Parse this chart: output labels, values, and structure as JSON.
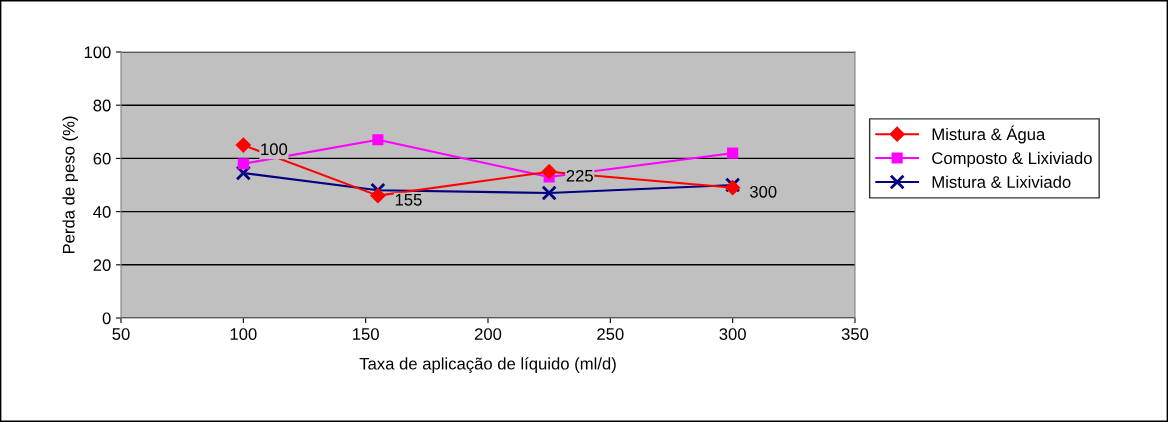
{
  "chart_data": {
    "type": "line",
    "xlabel": "Taxa de aplicação de líquido (ml/d)",
    "ylabel": "Perda de peso (%)",
    "x": [
      100,
      155,
      225,
      300
    ],
    "series": [
      {
        "name": "Mistura & Água",
        "color": "#ff0000",
        "marker": "diamond",
        "values": [
          65,
          46,
          55,
          49
        ]
      },
      {
        "name": "Composto & Lixiviado",
        "color": "#ff00ff",
        "marker": "square",
        "values": [
          58,
          67,
          53,
          62
        ]
      },
      {
        "name": "Mistura & Lixiviado",
        "color": "#000080",
        "marker": "cross",
        "values": [
          54.5,
          48,
          47,
          50
        ]
      }
    ],
    "annotations": [
      {
        "text": "100",
        "x": 100,
        "y": 65
      },
      {
        "text": "155",
        "x": 155,
        "y": 46
      },
      {
        "text": "225",
        "x": 225,
        "y": 55
      },
      {
        "text": "300",
        "x": 300,
        "y": 49
      }
    ],
    "xlim": [
      50,
      350
    ],
    "xticks": [
      50,
      100,
      150,
      200,
      250,
      300,
      350
    ],
    "ylim": [
      0,
      100
    ],
    "yticks": [
      0,
      20,
      40,
      60,
      80,
      100
    ],
    "grid": "y",
    "legend": "right"
  }
}
